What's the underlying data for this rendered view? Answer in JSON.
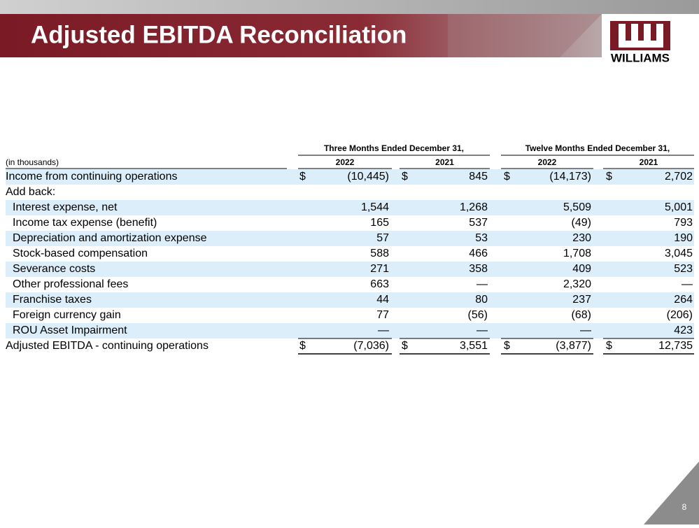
{
  "header": {
    "title": "Adjusted EBITDA Reconciliation",
    "logo": "WILLIAMS"
  },
  "table": {
    "unit_label": "(in thousands)",
    "groups": [
      "Three Months Ended December 31,",
      "Twelve Months Ended December 31,"
    ],
    "years": [
      "2022",
      "2021",
      "2022",
      "2021"
    ],
    "rows": [
      {
        "label": "Income from continuing operations",
        "currency": "$",
        "cells": [
          "(10,445)",
          "845",
          "(14,173)",
          "2,702"
        ]
      },
      {
        "label": "Add back:"
      },
      {
        "label": "Interest expense, net",
        "cells": [
          "1,544",
          "1,268",
          "5,509",
          "5,001"
        ]
      },
      {
        "label": "Income tax expense (benefit)",
        "cells": [
          "165",
          "537",
          "(49)",
          "793"
        ]
      },
      {
        "label": "Depreciation and amortization expense",
        "cells": [
          "57",
          "53",
          "230",
          "190"
        ]
      },
      {
        "label": "Stock-based compensation",
        "cells": [
          "588",
          "466",
          "1,708",
          "3,045"
        ]
      },
      {
        "label": "Severance costs",
        "cells": [
          "271",
          "358",
          "409",
          "523"
        ]
      },
      {
        "label": "Other professional fees",
        "cells": [
          "663",
          "—",
          "2,320",
          "—"
        ]
      },
      {
        "label": "Franchise taxes",
        "cells": [
          "44",
          "80",
          "237",
          "264"
        ]
      },
      {
        "label": "Foreign currency gain",
        "cells": [
          "77",
          "(56)",
          "(68)",
          "(206)"
        ]
      },
      {
        "label": "ROU Asset Impairment",
        "cells": [
          "—",
          "—",
          "—",
          "423"
        ]
      },
      {
        "label": "Adjusted EBITDA - continuing operations",
        "currency": "$",
        "cells": [
          "(7,036)",
          "3,551",
          "(3,877)",
          "12,735"
        ]
      }
    ]
  },
  "page_number": "8"
}
